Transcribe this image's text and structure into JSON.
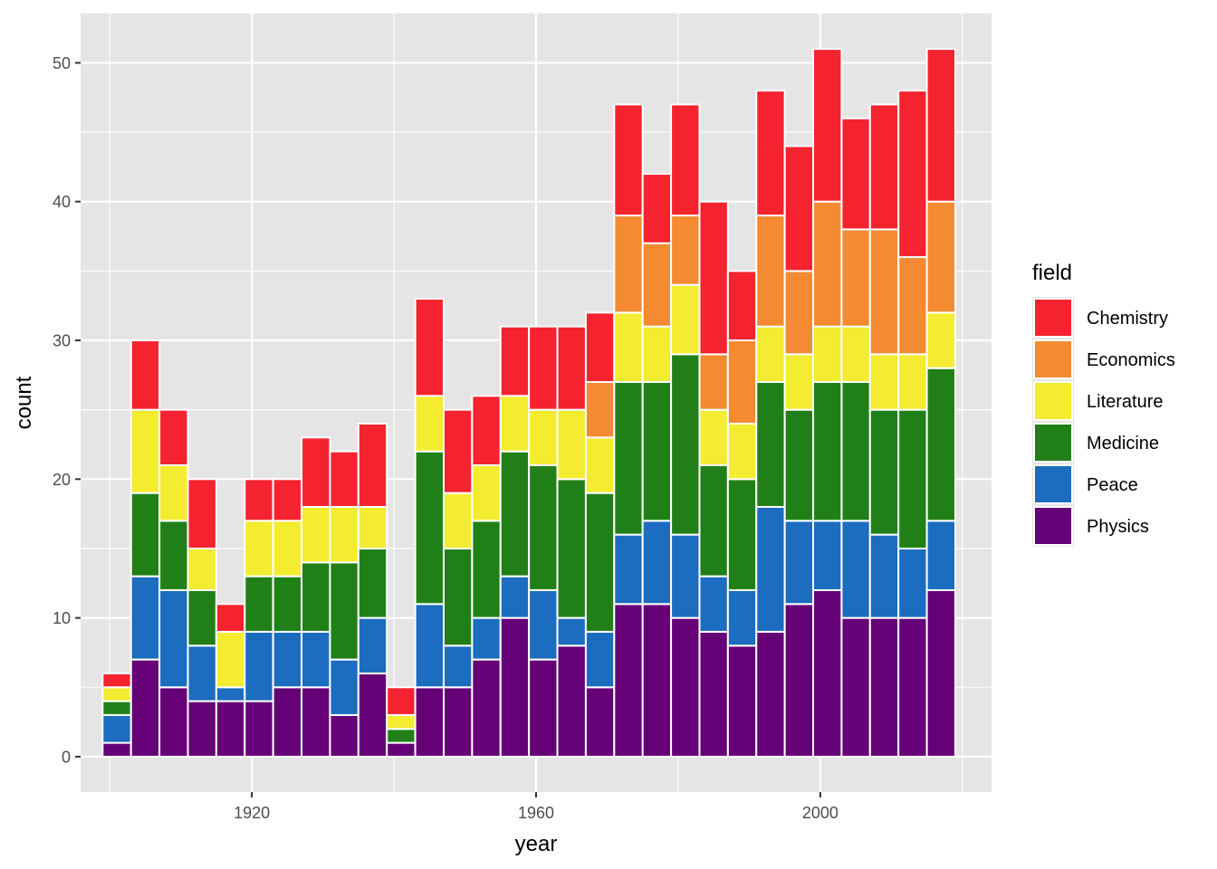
{
  "chart_data": {
    "type": "bar",
    "stacked": true,
    "xlabel": "year",
    "ylabel": "count",
    "xlim": [
      1895.9,
      2024.1
    ],
    "ylim": [
      -2.55,
      53.55
    ],
    "x_ticks": [
      1920,
      1960,
      2000
    ],
    "y_ticks": [
      0,
      10,
      20,
      30,
      40,
      50
    ],
    "x_minor_ticks": [
      1900,
      1940,
      1980,
      2020
    ],
    "y_minor_ticks": [
      5,
      15,
      25,
      35,
      45
    ],
    "grid": true,
    "legend": {
      "title": "field",
      "position": "right"
    },
    "bin_width": 4,
    "x": [
      1901,
      1905,
      1909,
      1913,
      1917,
      1921,
      1925,
      1929,
      1933,
      1937,
      1941,
      1945,
      1949,
      1953,
      1957,
      1961,
      1965,
      1969,
      1973,
      1977,
      1981,
      1985,
      1989,
      1993,
      1997,
      2001,
      2005,
      2009,
      2013,
      2017
    ],
    "series": [
      {
        "name": "Physics",
        "color": "#660077",
        "values": [
          1,
          7,
          5,
          4,
          4,
          4,
          5,
          5,
          3,
          6,
          1,
          5,
          5,
          7,
          10,
          7,
          8,
          5,
          11,
          11,
          10,
          9,
          8,
          9,
          11,
          12,
          10,
          10,
          10,
          12
        ]
      },
      {
        "name": "Peace",
        "color": "#1c6cbf",
        "values": [
          2,
          6,
          7,
          4,
          1,
          5,
          4,
          4,
          4,
          4,
          0,
          6,
          3,
          3,
          3,
          5,
          2,
          4,
          5,
          6,
          6,
          4,
          4,
          9,
          6,
          5,
          7,
          6,
          5,
          5
        ]
      },
      {
        "name": "Medicine",
        "color": "#208017",
        "values": [
          1,
          6,
          5,
          4,
          0,
          4,
          4,
          5,
          7,
          5,
          1,
          11,
          7,
          7,
          9,
          9,
          10,
          10,
          11,
          10,
          13,
          8,
          8,
          9,
          8,
          10,
          10,
          9,
          10,
          11
        ]
      },
      {
        "name": "Literature",
        "color": "#f3ec31",
        "values": [
          1,
          6,
          4,
          3,
          4,
          4,
          4,
          4,
          4,
          3,
          1,
          4,
          4,
          4,
          4,
          4,
          5,
          4,
          5,
          4,
          5,
          4,
          4,
          4,
          4,
          4,
          4,
          4,
          4,
          4
        ]
      },
      {
        "name": "Economics",
        "color": "#f48a31",
        "values": [
          0,
          0,
          0,
          0,
          0,
          0,
          0,
          0,
          0,
          0,
          0,
          0,
          0,
          0,
          0,
          0,
          0,
          4,
          7,
          6,
          5,
          4,
          6,
          8,
          6,
          9,
          7,
          9,
          7,
          8
        ]
      },
      {
        "name": "Chemistry",
        "color": "#f4232f",
        "values": [
          1,
          5,
          4,
          5,
          2,
          3,
          3,
          5,
          4,
          6,
          2,
          7,
          6,
          5,
          5,
          6,
          6,
          5,
          8,
          5,
          8,
          11,
          5,
          9,
          9,
          11,
          8,
          9,
          12,
          11
        ]
      }
    ],
    "legend_order": [
      "Chemistry",
      "Economics",
      "Literature",
      "Medicine",
      "Peace",
      "Physics"
    ],
    "colors": {
      "panel_background": "#e5e5e5",
      "grid_line": "#ffffff",
      "bar_outline": "#ffffff",
      "tick_label": "#4d4d4d",
      "tick_mark": "#333333"
    }
  }
}
